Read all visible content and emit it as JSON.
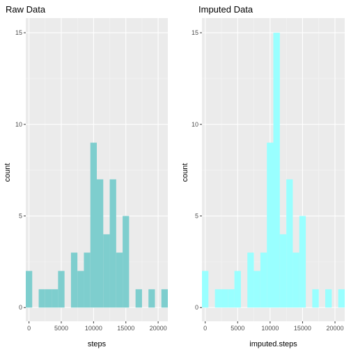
{
  "chart_data": [
    {
      "type": "bar",
      "title": "Raw Data",
      "xlabel": "steps",
      "ylabel": "count",
      "x_ticks": [
        "0",
        "5000",
        "10000",
        "15000",
        "20000"
      ],
      "y_ticks": [
        "0",
        "5",
        "10",
        "15"
      ],
      "xlim": [
        -500,
        21500
      ],
      "ylim": [
        -0.75,
        15.8
      ],
      "bin_width": 1000,
      "bin_starts": [
        -500,
        500,
        1500,
        2500,
        3500,
        4500,
        5500,
        6500,
        7500,
        8500,
        9500,
        10500,
        11500,
        12500,
        13500,
        14500,
        15500,
        16500,
        17500,
        18500,
        19500,
        20500
      ],
      "values": [
        2,
        0,
        1,
        1,
        1,
        2,
        0,
        3,
        2,
        3,
        9,
        7,
        4,
        7,
        3,
        5,
        0,
        1,
        0,
        1,
        0,
        1
      ],
      "fill": "#7ecece",
      "grid": true
    },
    {
      "type": "bar",
      "title": "Imputed Data",
      "xlabel": "imputed.steps",
      "ylabel": "count",
      "x_ticks": [
        "0",
        "5000",
        "10000",
        "15000",
        "20000"
      ],
      "y_ticks": [
        "0",
        "5",
        "10",
        "15"
      ],
      "xlim": [
        -500,
        21500
      ],
      "ylim": [
        -0.75,
        15.8
      ],
      "bin_width": 1000,
      "bin_starts": [
        -500,
        500,
        1500,
        2500,
        3500,
        4500,
        5500,
        6500,
        7500,
        8500,
        9500,
        10500,
        11500,
        12500,
        13500,
        14500,
        15500,
        16500,
        17500,
        18500,
        19500,
        20500
      ],
      "values": [
        2,
        0,
        1,
        1,
        1,
        2,
        0,
        3,
        2,
        3,
        9,
        15,
        4,
        7,
        3,
        5,
        0,
        1,
        0,
        1,
        0,
        1
      ],
      "fill": "#99ffff",
      "grid": true
    }
  ]
}
